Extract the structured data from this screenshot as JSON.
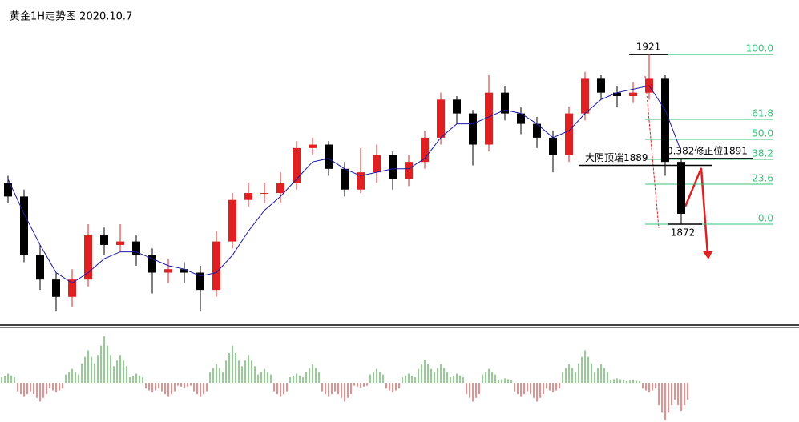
{
  "chart_data": [
    {
      "type": "candlestick",
      "title": "黄金1H走势图 2020.10.7",
      "ylim": [
        1845.4,
        1927.5
      ],
      "up_color": "#e02020",
      "down_color": "#000000",
      "ma_color": "#1a1aa8",
      "open": [
        1884,
        1880,
        1863,
        1856,
        1851,
        1856,
        1869,
        1866,
        1867,
        1863,
        1858,
        1859,
        1858,
        1853,
        1867,
        1879,
        1881,
        1881,
        1884,
        1894,
        1895,
        1888,
        1882,
        1887,
        1892,
        1885,
        1890,
        1897,
        1908,
        1904,
        1895,
        1910,
        1904,
        1901,
        1897,
        1892,
        1904,
        1914,
        1910,
        1909,
        1910,
        1914,
        1890
      ],
      "high": [
        1886,
        1882,
        1866,
        1858,
        1859,
        1872,
        1871,
        1872,
        1869,
        1865,
        1862,
        1861,
        1860,
        1870,
        1881,
        1884,
        1884,
        1887,
        1896,
        1897,
        1896,
        1890,
        1894,
        1895,
        1893,
        1892,
        1899,
        1910,
        1909,
        1905,
        1915,
        1912,
        1906,
        1903,
        1899,
        1906,
        1916,
        1915,
        1912,
        1913,
        1921,
        1915,
        1891
      ],
      "low": [
        1878,
        1861,
        1853,
        1847,
        1848,
        1854,
        1863,
        1864,
        1860,
        1852,
        1855,
        1855,
        1847,
        1851,
        1865,
        1877,
        1878,
        1878,
        1882,
        1892,
        1886,
        1880,
        1881,
        1884,
        1882,
        1883,
        1888,
        1895,
        1901,
        1889,
        1893,
        1902,
        1898,
        1894,
        1887,
        1890,
        1902,
        1908,
        1906,
        1907,
        1908,
        1886,
        1872
      ],
      "close": [
        1880,
        1863,
        1856,
        1851,
        1856,
        1869,
        1866,
        1867,
        1863,
        1858,
        1859,
        1858,
        1853,
        1867,
        1879,
        1881,
        1881,
        1884,
        1894,
        1895,
        1888,
        1882,
        1887,
        1892,
        1885,
        1890,
        1897,
        1908,
        1904,
        1895,
        1910,
        1904,
        1901,
        1897,
        1892,
        1904,
        1914,
        1910,
        1909,
        1910,
        1914,
        1890,
        1875
      ],
      "ma": [
        1885,
        1875,
        1866,
        1858,
        1855,
        1858,
        1862,
        1864,
        1864,
        1862,
        1860,
        1859,
        1857,
        1858,
        1863,
        1870,
        1876,
        1880,
        1885,
        1890,
        1891,
        1888,
        1886,
        1887,
        1888,
        1888,
        1891,
        1897,
        1901,
        1901,
        1903,
        1905,
        1904,
        1901,
        1897,
        1899,
        1904,
        1908,
        1910,
        1911,
        1912,
        1905,
        1893
      ],
      "fib": {
        "low": 1872,
        "high": 1921,
        "color": "#39c27a",
        "levels": [
          {
            "value": 100,
            "label": "100.0"
          },
          {
            "value": 61.8,
            "label": "61.8"
          },
          {
            "value": 50,
            "label": "50.0"
          },
          {
            "value": 38.2,
            "label": "38.2"
          },
          {
            "value": 23.6,
            "label": "23.6"
          },
          {
            "value": 0,
            "label": "0.0"
          }
        ]
      },
      "annotations": [
        {
          "text": "大阴顶端1889",
          "value": 1889
        },
        {
          "text": "0.382修正位1891",
          "value": 1891
        }
      ]
    },
    {
      "type": "bar",
      "ylim": [
        -4.2,
        5
      ],
      "up_color": "#2a9a2a",
      "down_color": "#d02020",
      "values": [
        1,
        -1.5,
        -2,
        -1,
        1.5,
        3.5,
        5,
        3,
        1,
        -1,
        -1.5,
        -0.5,
        -1.5,
        2,
        4,
        3,
        1.5,
        -1.5,
        1,
        2,
        -1.5,
        -2,
        -0.5,
        1.5,
        -1,
        1,
        2.5,
        2,
        1,
        -2,
        1.5,
        0.5,
        -1.5,
        -2,
        -1,
        2,
        3.5,
        2,
        0.5,
        0.3,
        -1,
        -4,
        -3
      ]
    }
  ]
}
